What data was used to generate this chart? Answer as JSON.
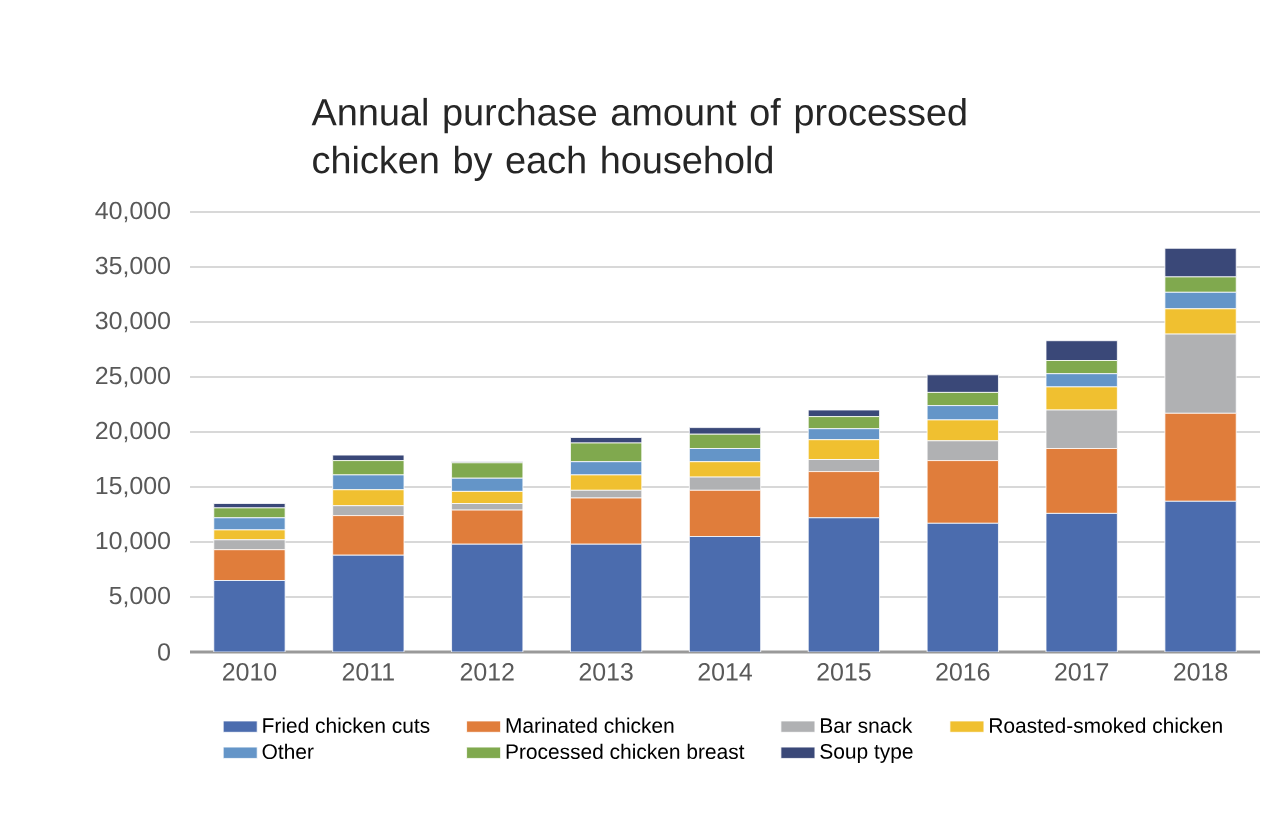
{
  "chart_data": {
    "type": "bar",
    "stacked": true,
    "title": "Annual purchase amount of processed chicken by each household",
    "categories": [
      "2010",
      "2011",
      "2012",
      "2013",
      "2014",
      "2015",
      "2016",
      "2017",
      "2018"
    ],
    "series": [
      {
        "name": "Fried chicken cuts",
        "color": "#4b6cae",
        "values": [
          6500,
          8800,
          9800,
          9800,
          10500,
          12200,
          11700,
          12600,
          13700
        ]
      },
      {
        "name": "Marinated chicken",
        "color": "#e07d3b",
        "values": [
          2800,
          3600,
          3100,
          4200,
          4200,
          4200,
          5700,
          5900,
          8000
        ]
      },
      {
        "name": "Bar snack",
        "color": "#b0b1b3",
        "values": [
          900,
          900,
          600,
          700,
          1200,
          1100,
          1800,
          3500,
          7200
        ]
      },
      {
        "name": "Roasted-smoked chicken",
        "color": "#f0c030",
        "values": [
          900,
          1450,
          1100,
          1400,
          1400,
          1800,
          1900,
          2100,
          2300
        ]
      },
      {
        "name": "Other",
        "color": "#6495c8",
        "values": [
          1100,
          1350,
          1200,
          1200,
          1200,
          1000,
          1300,
          1200,
          1500
        ]
      },
      {
        "name": "Processed chicken breast",
        "color": "#80a94e",
        "values": [
          900,
          1300,
          1400,
          1700,
          1300,
          1100,
          1200,
          1200,
          1400
        ]
      },
      {
        "name": "Soup type",
        "color": "#3a4878",
        "values": [
          400,
          500,
          100,
          500,
          600,
          600,
          1600,
          1800,
          2600
        ]
      }
    ],
    "ylim": [
      0,
      40000
    ],
    "yticks": [
      0,
      {
        "value": 5000,
        "label": "5,000"
      },
      {
        "value": 10000,
        "label": "10,000"
      },
      {
        "value": 15000,
        "label": "15,000"
      },
      {
        "value": 20000,
        "label": "20,000"
      },
      {
        "value": 25000,
        "label": "25,000"
      },
      {
        "value": 30000,
        "label": "30,000"
      },
      {
        "value": 35000,
        "label": "35,000"
      },
      {
        "value": 40000,
        "label": "40,000"
      }
    ],
    "grid": "y",
    "legend": "bottom"
  }
}
